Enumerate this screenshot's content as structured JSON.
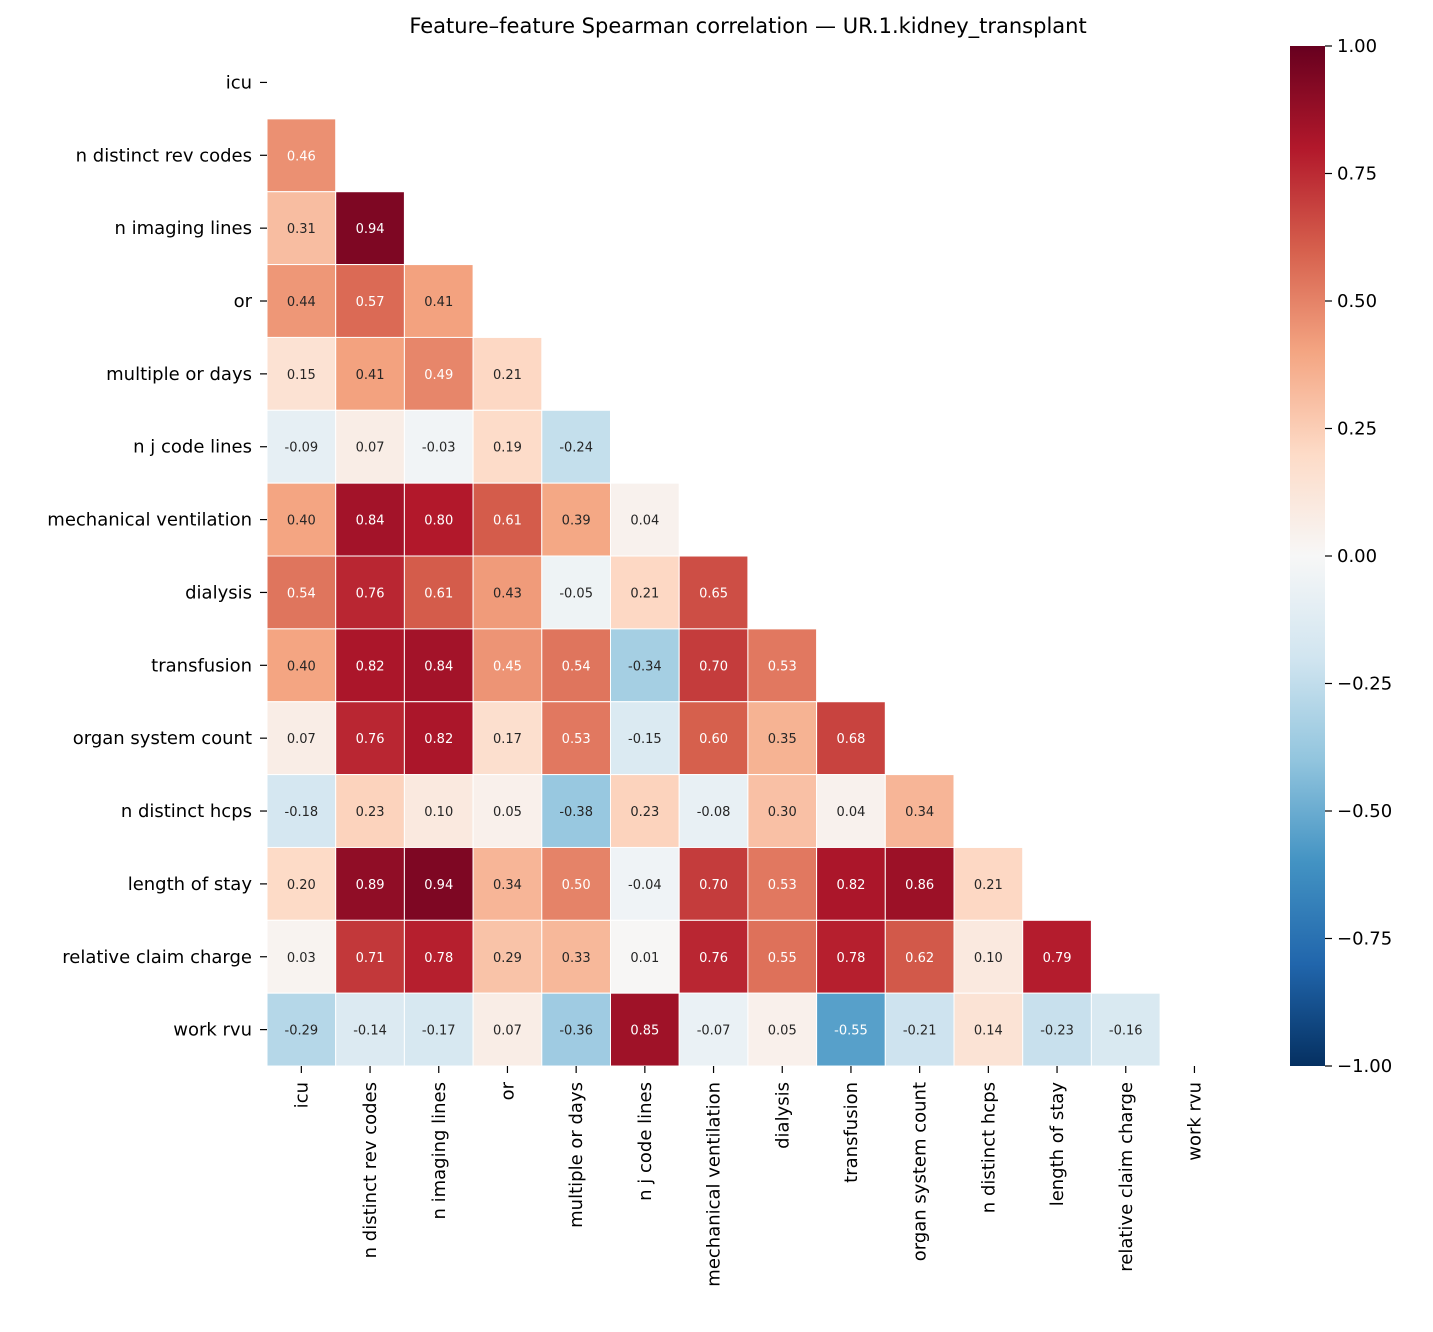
{
  "chart_data": {
    "type": "heatmap",
    "title": "Feature–feature Spearman correlation — UR.1.kidney_transplant",
    "labels": [
      "icu",
      "n distinct rev codes",
      "n imaging lines",
      "or",
      "multiple or days",
      "n j code lines",
      "mechanical ventilation",
      "dialysis",
      "transfusion",
      "organ system count",
      "n distinct hcps",
      "length of stay",
      "relative claim charge",
      "work rvu"
    ],
    "mask": "upper triangle including diagonal",
    "lower_triangle": [
      [],
      [
        0.46
      ],
      [
        0.31,
        0.94
      ],
      [
        0.44,
        0.57,
        0.41
      ],
      [
        0.15,
        0.41,
        0.49,
        0.21
      ],
      [
        -0.09,
        0.07,
        -0.03,
        0.19,
        -0.24
      ],
      [
        0.4,
        0.84,
        0.8,
        0.61,
        0.39,
        0.04
      ],
      [
        0.54,
        0.76,
        0.61,
        0.43,
        -0.05,
        0.21,
        0.65
      ],
      [
        0.4,
        0.82,
        0.84,
        0.45,
        0.54,
        -0.34,
        0.7,
        0.53
      ],
      [
        0.07,
        0.76,
        0.82,
        0.17,
        0.53,
        -0.15,
        0.6,
        0.35,
        0.68
      ],
      [
        -0.18,
        0.23,
        0.1,
        0.05,
        -0.38,
        0.23,
        -0.08,
        0.3,
        0.04,
        0.34
      ],
      [
        0.2,
        0.89,
        0.94,
        0.34,
        0.5,
        -0.04,
        0.7,
        0.53,
        0.82,
        0.86,
        0.21
      ],
      [
        0.03,
        0.71,
        0.78,
        0.29,
        0.33,
        0.01,
        0.76,
        0.55,
        0.78,
        0.62,
        0.1,
        0.79
      ],
      [
        -0.29,
        -0.14,
        -0.17,
        0.07,
        -0.36,
        0.85,
        -0.07,
        0.05,
        -0.55,
        -0.21,
        0.14,
        -0.23,
        -0.16
      ]
    ],
    "colormap": "RdBu_r",
    "vmin": -1,
    "vmax": 1,
    "colorbar_ticks": [
      "1.00",
      "0.75",
      "0.50",
      "0.25",
      "0.00",
      "−0.25",
      "−0.50",
      "−0.75",
      "−1.00"
    ],
    "colorbar_tick_values": [
      1,
      0.75,
      0.5,
      0.25,
      0,
      -0.25,
      -0.5,
      -0.75,
      -1
    ],
    "annotations": "values with 2 decimals"
  }
}
